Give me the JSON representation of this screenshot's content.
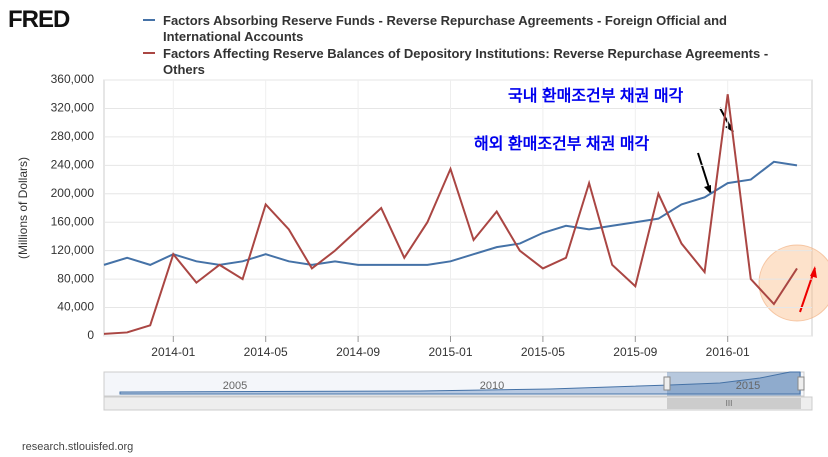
{
  "chart_data": {
    "type": "line",
    "logo": "FRED",
    "source": "research.stlouisfed.org",
    "ylabel": "(Millions of Dollars)",
    "x": [
      "2013-10",
      "2013-11",
      "2013-12",
      "2014-01",
      "2014-02",
      "2014-03",
      "2014-04",
      "2014-05",
      "2014-06",
      "2014-07",
      "2014-08",
      "2014-09",
      "2014-10",
      "2014-11",
      "2014-12",
      "2015-01",
      "2015-02",
      "2015-03",
      "2015-04",
      "2015-05",
      "2015-06",
      "2015-07",
      "2015-08",
      "2015-09",
      "2015-10",
      "2015-11",
      "2015-12",
      "2016-01",
      "2016-02",
      "2016-03",
      "2016-04"
    ],
    "series": [
      {
        "name": "Factors Absorbing Reserve Funds - Reverse Repurchase Agreements - Foreign Official and International Accounts",
        "color": "#4572a7",
        "values": [
          100000,
          110000,
          100000,
          115000,
          105000,
          100000,
          105000,
          115000,
          105000,
          100000,
          105000,
          100000,
          100000,
          100000,
          100000,
          105000,
          115000,
          125000,
          130000,
          145000,
          155000,
          150000,
          155000,
          160000,
          165000,
          185000,
          195000,
          215000,
          220000,
          245000,
          240000
        ]
      },
      {
        "name": "Factors Affecting Reserve Balances of Depository Institutions: Reverse Repurchase Agreements - Others",
        "color": "#aa4643",
        "values": [
          3000,
          5000,
          15000,
          115000,
          75000,
          100000,
          80000,
          185000,
          150000,
          95000,
          120000,
          150000,
          180000,
          110000,
          160000,
          235000,
          135000,
          175000,
          120000,
          95000,
          110000,
          215000,
          100000,
          70000,
          200000,
          130000,
          90000,
          340000,
          80000,
          45000,
          95000
        ]
      }
    ],
    "annotations": [
      "국내 환매조건부 채권 매각",
      "해외 환매조건부 채권 매각"
    ],
    "ylim": [
      0,
      360000
    ],
    "yticks": [
      0,
      {
        "value": 40000,
        "label": "40,000"
      },
      {
        "value": 80000,
        "label": "80,000"
      },
      {
        "value": 120000,
        "label": "120,000"
      },
      {
        "value": 160000,
        "label": "160,000"
      },
      {
        "value": 200000,
        "label": "200,000"
      },
      {
        "value": 240000,
        "label": "240,000"
      },
      {
        "value": 280000,
        "label": "280,000"
      },
      {
        "value": 320000,
        "label": "320,000"
      },
      {
        "value": 360000,
        "label": "360,000"
      }
    ],
    "xticks": [
      "2014-01",
      "2014-05",
      "2014-09",
      "2015-01",
      "2015-05",
      "2015-09",
      "2016-01"
    ],
    "navigator_labels": [
      "2005",
      "2010",
      "2015",
      "III"
    ],
    "grid": true
  }
}
